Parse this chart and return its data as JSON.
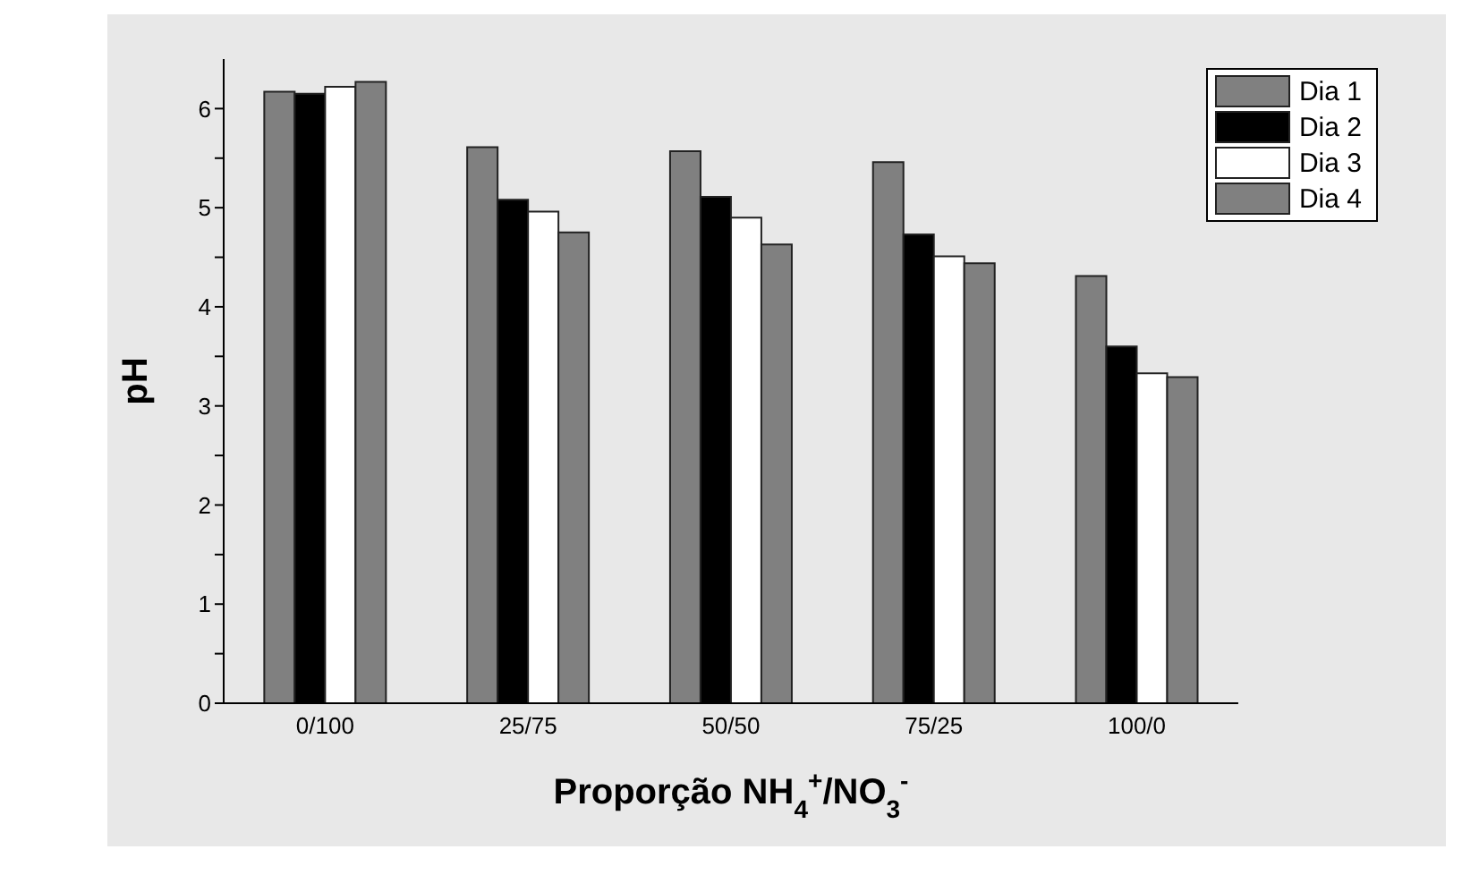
{
  "chart_data": {
    "type": "bar",
    "xlabel": "Proporção NH$_{4}$$^{+}$/NO$_{3}$$^{-}$",
    "ylabel": "pH",
    "categories": [
      "0/100",
      "25/75",
      "50/50",
      "75/25",
      "100/0"
    ],
    "series": [
      {
        "name": "Dia 1",
        "color": "#808080",
        "values": [
          6.17,
          5.61,
          5.57,
          5.46,
          4.31
        ]
      },
      {
        "name": "Dia 2",
        "color": "#000000",
        "values": [
          6.15,
          5.08,
          5.11,
          4.73,
          3.6
        ]
      },
      {
        "name": "Dia 3",
        "color": "#ffffff",
        "values": [
          6.22,
          4.96,
          4.9,
          4.51,
          3.33
        ]
      },
      {
        "name": "Dia 4",
        "color": "#808080",
        "values": [
          6.27,
          4.75,
          4.63,
          4.44,
          3.29
        ]
      }
    ],
    "ylim": [
      0,
      6.5
    ],
    "yticks": [
      0,
      {
        "value": 0.5,
        "label": null
      },
      1,
      {
        "value": 1.5,
        "label": null
      },
      2,
      {
        "value": 2.5,
        "label": null
      },
      3,
      {
        "value": 3.5,
        "label": null
      },
      4,
      {
        "value": 4.5,
        "label": null
      },
      5,
      {
        "value": 5.5,
        "label": null
      },
      6
    ],
    "grid": false,
    "legend": "top right"
  }
}
